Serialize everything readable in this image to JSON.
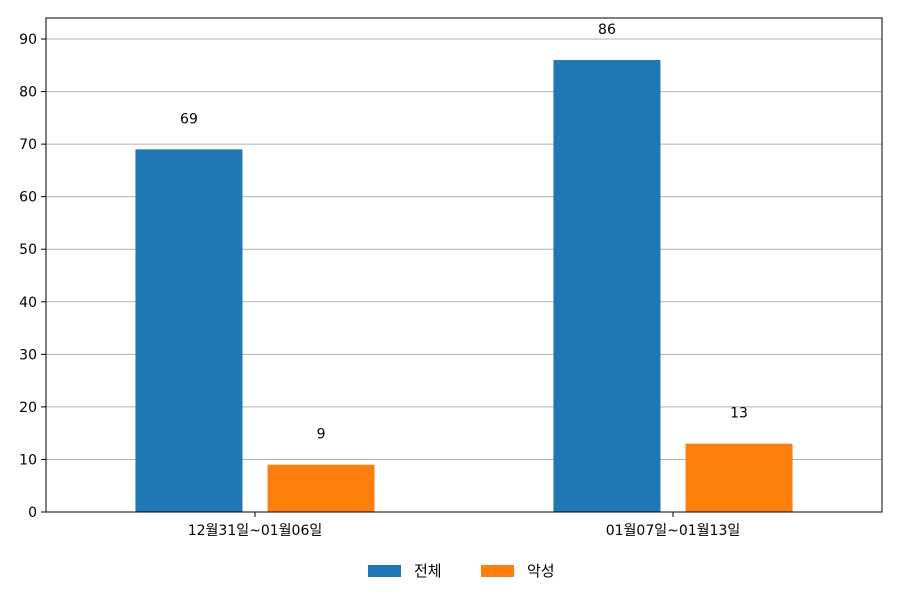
{
  "chart_data": {
    "type": "bar",
    "categories": [
      "12월31일~01월06일",
      "01월07일~01월13일"
    ],
    "series": [
      {
        "name": "전체",
        "values": [
          69,
          86
        ],
        "color": "#1f77b4"
      },
      {
        "name": "악성",
        "values": [
          9,
          13
        ],
        "color": "#ff7f0e"
      }
    ],
    "ylim": [
      0,
      94
    ],
    "yticks": [
      0,
      10,
      20,
      30,
      40,
      50,
      60,
      70,
      80,
      90
    ],
    "grid": "horizontal",
    "legend_position": "bottom-center",
    "show_data_labels": true
  }
}
